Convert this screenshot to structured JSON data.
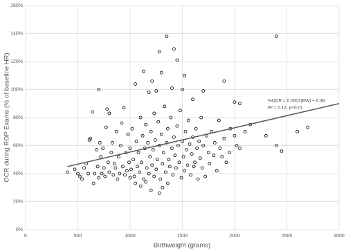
{
  "chart_data": {
    "type": "scatter",
    "xlabel": "Birthweight (grams)",
    "ylabel": "OCR during ROP Exams (% of baseline HR)",
    "xlim": [
      0,
      3000
    ],
    "xticks": [
      0,
      500,
      1000,
      1500,
      2000,
      2500,
      3000
    ],
    "ylim": [
      0,
      160
    ],
    "yticks": [
      {
        "value": 0,
        "label": "0%"
      },
      {
        "value": 20,
        "label": "20%"
      },
      {
        "value": 40,
        "label": "40%"
      },
      {
        "value": 60,
        "label": "60%"
      },
      {
        "value": 80,
        "label": "80%"
      },
      {
        "value": 100,
        "label": "100%"
      },
      {
        "value": 120,
        "label": "120%"
      },
      {
        "value": 140,
        "label": "140%"
      },
      {
        "value": 160,
        "label": "160%"
      }
    ],
    "grid": true,
    "color": "#000000",
    "x": [
      400,
      470,
      500,
      520,
      540,
      560,
      580,
      600,
      610,
      620,
      640,
      650,
      660,
      680,
      690,
      700,
      700,
      710,
      720,
      730,
      740,
      750,
      760,
      770,
      780,
      790,
      800,
      800,
      820,
      830,
      840,
      850,
      860,
      870,
      880,
      890,
      900,
      910,
      920,
      930,
      940,
      950,
      960,
      970,
      980,
      990,
      1000,
      1000,
      1010,
      1020,
      1030,
      1040,
      1050,
      1050,
      1060,
      1070,
      1080,
      1090,
      1100,
      1100,
      1110,
      1120,
      1130,
      1130,
      1140,
      1150,
      1150,
      1160,
      1170,
      1180,
      1180,
      1190,
      1200,
      1200,
      1210,
      1210,
      1220,
      1230,
      1230,
      1240,
      1250,
      1250,
      1260,
      1270,
      1280,
      1280,
      1280,
      1290,
      1300,
      1300,
      1310,
      1310,
      1320,
      1330,
      1340,
      1350,
      1350,
      1360,
      1360,
      1370,
      1380,
      1390,
      1400,
      1400,
      1410,
      1420,
      1420,
      1430,
      1440,
      1450,
      1450,
      1460,
      1470,
      1480,
      1490,
      1500,
      1500,
      1510,
      1520,
      1520,
      1530,
      1540,
      1550,
      1560,
      1570,
      1580,
      1590,
      1600,
      1600,
      1610,
      1620,
      1630,
      1640,
      1650,
      1660,
      1670,
      1680,
      1690,
      1700,
      1700,
      1720,
      1730,
      1750,
      1760,
      1780,
      1800,
      1810,
      1830,
      1850,
      1860,
      1880,
      1900,
      1900,
      1920,
      1950,
      1960,
      2000,
      2000,
      2020,
      2050,
      2050,
      2100,
      2150,
      2300,
      2400,
      2400,
      2450,
      2600,
      2700
    ],
    "values": [
      41,
      43,
      40,
      38,
      36,
      44,
      47,
      40,
      64,
      65,
      84,
      33,
      40,
      57,
      45,
      37,
      100,
      62,
      52,
      40,
      58,
      44,
      38,
      73,
      86,
      48,
      83,
      41,
      55,
      62,
      39,
      47,
      44,
      70,
      36,
      52,
      40,
      60,
      76,
      45,
      87,
      39,
      55,
      42,
      68,
      48,
      58,
      37,
      43,
      72,
      50,
      38,
      104,
      33,
      63,
      45,
      55,
      41,
      31,
      80,
      48,
      67,
      113,
      36,
      58,
      34,
      75,
      44,
      62,
      98,
      40,
      52,
      28,
      70,
      106,
      46,
      57,
      83,
      38,
      64,
      99,
      43,
      50,
      77,
      26,
      127,
      60,
      36,
      112,
      68,
      30,
      47,
      55,
      88,
      41,
      138,
      62,
      33,
      72,
      50,
      45,
      80,
      101,
      58,
      39,
      129,
      66,
      53,
      44,
      121,
      74,
      60,
      48,
      85,
      37,
      100,
      63,
      52,
      110,
      42,
      70,
      57,
      46,
      78,
      61,
      39,
      54,
      93,
      66,
      45,
      48,
      72,
      58,
      36,
      63,
      51,
      80,
      44,
      99,
      60,
      38,
      67,
      55,
      47,
      70,
      53,
      62,
      42,
      78,
      58,
      52,
      106,
      65,
      48,
      55,
      72,
      91,
      67,
      60,
      90,
      58,
      70,
      75,
      67,
      60,
      138,
      56,
      70,
      73
    ],
    "trendline": {
      "x": [
        400,
        3000
      ],
      "values": [
        45,
        90
      ],
      "color": "#595959"
    },
    "annotations": [
      "%OCR = 0.0002(BW) + 0.38",
      "R² = 0.12, p<0.01"
    ]
  }
}
